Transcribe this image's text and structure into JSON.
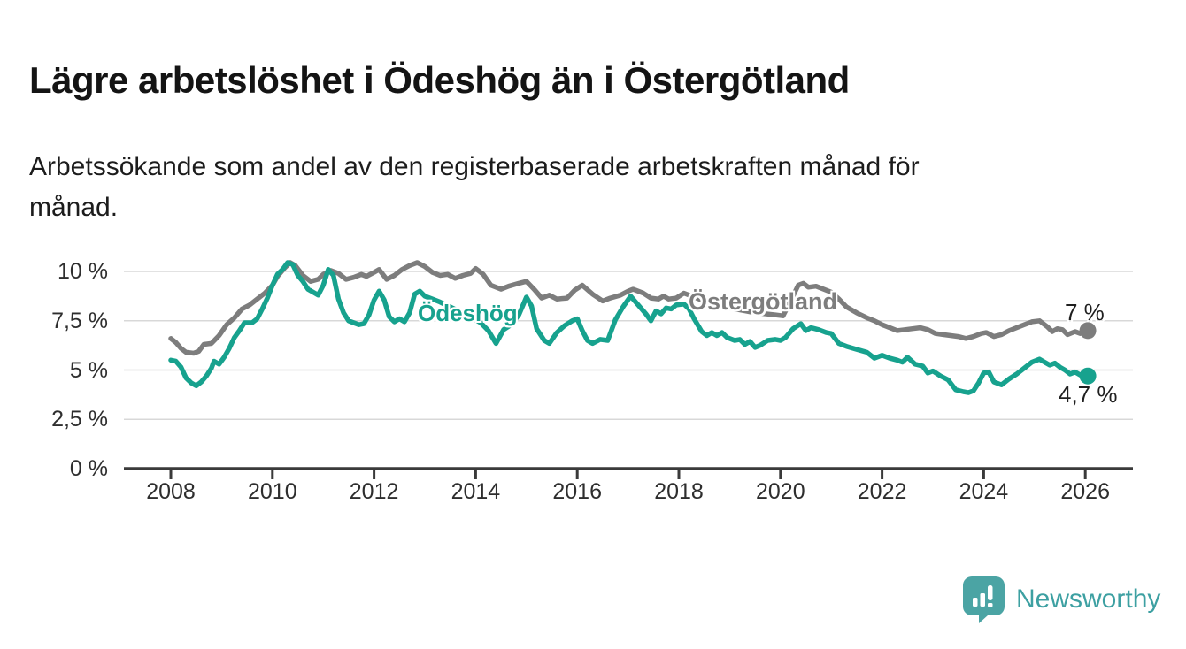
{
  "header": {
    "title": "Lägre arbetslöshet i Ödeshög än i Östergötland",
    "subtitle": "Arbetssökande som andel av den registerbaserade arbetskraften månad för\nmånad."
  },
  "chart_data": {
    "type": "line",
    "title": "Lägre arbetslöshet i Ödeshög än i Östergötland",
    "subtitle": "Arbetssökande som andel av den registerbaserade arbetskraften månad för månad.",
    "grid": "horizontal-only",
    "x_axis": {
      "tick_years": [
        2008,
        2010,
        2012,
        2014,
        2016,
        2018,
        2020,
        2022,
        2024,
        2026
      ],
      "range": [
        2007.1,
        2026.9
      ]
    },
    "y_axis": {
      "ticks": [
        {
          "value": 0,
          "label": "0 %"
        },
        {
          "value": 2.5,
          "label": "2,5 %"
        },
        {
          "value": 5,
          "label": "5 %"
        },
        {
          "value": 7.5,
          "label": "7,5 %"
        },
        {
          "value": 10,
          "label": "10 %"
        }
      ],
      "range": [
        0,
        11.2
      ]
    },
    "series": [
      {
        "name": "Östergötland",
        "color": "#7d7d7d",
        "end_label": "7 %",
        "end_value": 7.0,
        "points": [
          [
            2008.0,
            6.6
          ],
          [
            2008.1,
            6.4
          ],
          [
            2008.2,
            6.1
          ],
          [
            2008.3,
            5.9
          ],
          [
            2008.45,
            5.85
          ],
          [
            2008.55,
            5.95
          ],
          [
            2008.65,
            6.3
          ],
          [
            2008.8,
            6.35
          ],
          [
            2008.95,
            6.75
          ],
          [
            2009.1,
            7.3
          ],
          [
            2009.25,
            7.65
          ],
          [
            2009.4,
            8.1
          ],
          [
            2009.55,
            8.3
          ],
          [
            2009.7,
            8.6
          ],
          [
            2009.85,
            8.9
          ],
          [
            2010.0,
            9.3
          ],
          [
            2010.1,
            9.75
          ],
          [
            2010.25,
            10.2
          ],
          [
            2010.35,
            10.45
          ],
          [
            2010.45,
            10.3
          ],
          [
            2010.6,
            9.8
          ],
          [
            2010.75,
            9.5
          ],
          [
            2010.9,
            9.6
          ],
          [
            2011.0,
            9.85
          ],
          [
            2011.15,
            10.05
          ],
          [
            2011.3,
            9.9
          ],
          [
            2011.45,
            9.6
          ],
          [
            2011.6,
            9.7
          ],
          [
            2011.75,
            9.85
          ],
          [
            2011.85,
            9.75
          ],
          [
            2012.0,
            9.95
          ],
          [
            2012.1,
            10.1
          ],
          [
            2012.25,
            9.6
          ],
          [
            2012.4,
            9.8
          ],
          [
            2012.55,
            10.1
          ],
          [
            2012.7,
            10.3
          ],
          [
            2012.85,
            10.45
          ],
          [
            2013.0,
            10.25
          ],
          [
            2013.15,
            9.95
          ],
          [
            2013.3,
            9.8
          ],
          [
            2013.45,
            9.85
          ],
          [
            2013.6,
            9.65
          ],
          [
            2013.75,
            9.8
          ],
          [
            2013.9,
            9.9
          ],
          [
            2014.0,
            10.15
          ],
          [
            2014.15,
            9.85
          ],
          [
            2014.3,
            9.3
          ],
          [
            2014.5,
            9.1
          ],
          [
            2014.65,
            9.25
          ],
          [
            2014.85,
            9.4
          ],
          [
            2015.0,
            9.5
          ],
          [
            2015.15,
            9.1
          ],
          [
            2015.3,
            8.65
          ],
          [
            2015.45,
            8.8
          ],
          [
            2015.6,
            8.6
          ],
          [
            2015.8,
            8.65
          ],
          [
            2015.95,
            9.05
          ],
          [
            2016.1,
            9.3
          ],
          [
            2016.3,
            8.85
          ],
          [
            2016.5,
            8.5
          ],
          [
            2016.65,
            8.65
          ],
          [
            2016.85,
            8.8
          ],
          [
            2017.0,
            9.0
          ],
          [
            2017.1,
            9.1
          ],
          [
            2017.3,
            8.9
          ],
          [
            2017.45,
            8.65
          ],
          [
            2017.6,
            8.6
          ],
          [
            2017.7,
            8.75
          ],
          [
            2017.8,
            8.6
          ],
          [
            2017.95,
            8.65
          ],
          [
            2018.1,
            8.9
          ],
          [
            2018.3,
            8.7
          ],
          [
            2018.5,
            8.5
          ],
          [
            2018.7,
            8.3
          ],
          [
            2018.9,
            8.2
          ],
          [
            2019.1,
            8.1
          ],
          [
            2019.3,
            8.0
          ],
          [
            2019.5,
            7.9
          ],
          [
            2019.7,
            7.85
          ],
          [
            2019.9,
            7.8
          ],
          [
            2020.05,
            7.75
          ],
          [
            2020.2,
            8.5
          ],
          [
            2020.35,
            9.3
          ],
          [
            2020.45,
            9.4
          ],
          [
            2020.55,
            9.2
          ],
          [
            2020.7,
            9.25
          ],
          [
            2020.85,
            9.1
          ],
          [
            2021.0,
            8.95
          ],
          [
            2021.15,
            8.6
          ],
          [
            2021.3,
            8.2
          ],
          [
            2021.5,
            7.9
          ],
          [
            2021.7,
            7.65
          ],
          [
            2021.85,
            7.5
          ],
          [
            2022.0,
            7.3
          ],
          [
            2022.15,
            7.15
          ],
          [
            2022.3,
            7.0
          ],
          [
            2022.45,
            7.05
          ],
          [
            2022.6,
            7.1
          ],
          [
            2022.75,
            7.15
          ],
          [
            2022.9,
            7.05
          ],
          [
            2023.05,
            6.85
          ],
          [
            2023.2,
            6.8
          ],
          [
            2023.35,
            6.75
          ],
          [
            2023.5,
            6.7
          ],
          [
            2023.65,
            6.6
          ],
          [
            2023.8,
            6.7
          ],
          [
            2023.95,
            6.85
          ],
          [
            2024.05,
            6.9
          ],
          [
            2024.2,
            6.7
          ],
          [
            2024.35,
            6.8
          ],
          [
            2024.5,
            7.0
          ],
          [
            2024.65,
            7.15
          ],
          [
            2024.8,
            7.3
          ],
          [
            2024.95,
            7.45
          ],
          [
            2025.1,
            7.5
          ],
          [
            2025.25,
            7.2
          ],
          [
            2025.35,
            6.95
          ],
          [
            2025.45,
            7.1
          ],
          [
            2025.55,
            7.05
          ],
          [
            2025.65,
            6.8
          ],
          [
            2025.8,
            6.95
          ],
          [
            2025.9,
            6.85
          ],
          [
            2026.05,
            7.0
          ]
        ]
      },
      {
        "name": "Ödeshög",
        "color": "#17a28e",
        "end_label": "4,7 %",
        "end_value": 4.7,
        "points": [
          [
            2008.0,
            5.5
          ],
          [
            2008.1,
            5.45
          ],
          [
            2008.2,
            5.15
          ],
          [
            2008.3,
            4.6
          ],
          [
            2008.4,
            4.35
          ],
          [
            2008.5,
            4.2
          ],
          [
            2008.6,
            4.4
          ],
          [
            2008.7,
            4.7
          ],
          [
            2008.8,
            5.1
          ],
          [
            2008.85,
            5.45
          ],
          [
            2008.95,
            5.3
          ],
          [
            2009.05,
            5.65
          ],
          [
            2009.15,
            6.1
          ],
          [
            2009.25,
            6.65
          ],
          [
            2009.35,
            7.0
          ],
          [
            2009.45,
            7.4
          ],
          [
            2009.6,
            7.4
          ],
          [
            2009.7,
            7.6
          ],
          [
            2009.8,
            8.1
          ],
          [
            2009.9,
            8.65
          ],
          [
            2010.0,
            9.3
          ],
          [
            2010.1,
            9.85
          ],
          [
            2010.2,
            10.1
          ],
          [
            2010.3,
            10.45
          ],
          [
            2010.4,
            10.35
          ],
          [
            2010.5,
            9.8
          ],
          [
            2010.6,
            9.5
          ],
          [
            2010.7,
            9.1
          ],
          [
            2010.8,
            8.95
          ],
          [
            2010.9,
            8.8
          ],
          [
            2011.0,
            9.3
          ],
          [
            2011.1,
            10.1
          ],
          [
            2011.2,
            9.8
          ],
          [
            2011.3,
            8.6
          ],
          [
            2011.4,
            7.9
          ],
          [
            2011.5,
            7.5
          ],
          [
            2011.6,
            7.4
          ],
          [
            2011.7,
            7.3
          ],
          [
            2011.8,
            7.35
          ],
          [
            2011.9,
            7.8
          ],
          [
            2012.0,
            8.55
          ],
          [
            2012.1,
            9.0
          ],
          [
            2012.2,
            8.55
          ],
          [
            2012.3,
            7.7
          ],
          [
            2012.4,
            7.45
          ],
          [
            2012.5,
            7.6
          ],
          [
            2012.6,
            7.45
          ],
          [
            2012.7,
            7.9
          ],
          [
            2012.8,
            8.85
          ],
          [
            2012.9,
            9.0
          ],
          [
            2013.0,
            8.75
          ],
          [
            2013.15,
            8.6
          ],
          [
            2013.3,
            8.45
          ],
          [
            2013.5,
            8.2
          ],
          [
            2013.7,
            7.95
          ],
          [
            2013.9,
            7.7
          ],
          [
            2014.1,
            7.4
          ],
          [
            2014.25,
            7.0
          ],
          [
            2014.4,
            6.35
          ],
          [
            2014.55,
            7.05
          ],
          [
            2014.7,
            7.3
          ],
          [
            2014.85,
            7.8
          ],
          [
            2015.0,
            8.7
          ],
          [
            2015.1,
            8.25
          ],
          [
            2015.2,
            7.1
          ],
          [
            2015.35,
            6.5
          ],
          [
            2015.45,
            6.35
          ],
          [
            2015.6,
            6.9
          ],
          [
            2015.75,
            7.25
          ],
          [
            2015.9,
            7.5
          ],
          [
            2016.0,
            7.6
          ],
          [
            2016.1,
            7.0
          ],
          [
            2016.2,
            6.5
          ],
          [
            2016.3,
            6.35
          ],
          [
            2016.45,
            6.55
          ],
          [
            2016.6,
            6.5
          ],
          [
            2016.75,
            7.55
          ],
          [
            2016.9,
            8.2
          ],
          [
            2017.05,
            8.75
          ],
          [
            2017.2,
            8.3
          ],
          [
            2017.35,
            7.85
          ],
          [
            2017.45,
            7.5
          ],
          [
            2017.55,
            8.0
          ],
          [
            2017.65,
            7.85
          ],
          [
            2017.75,
            8.15
          ],
          [
            2017.85,
            8.1
          ],
          [
            2017.95,
            8.3
          ],
          [
            2018.1,
            8.35
          ],
          [
            2018.2,
            8.1
          ],
          [
            2018.3,
            7.6
          ],
          [
            2018.45,
            6.95
          ],
          [
            2018.55,
            6.75
          ],
          [
            2018.65,
            6.9
          ],
          [
            2018.75,
            6.75
          ],
          [
            2018.85,
            6.9
          ],
          [
            2018.95,
            6.65
          ],
          [
            2019.1,
            6.5
          ],
          [
            2019.2,
            6.55
          ],
          [
            2019.3,
            6.3
          ],
          [
            2019.4,
            6.45
          ],
          [
            2019.5,
            6.15
          ],
          [
            2019.6,
            6.25
          ],
          [
            2019.75,
            6.5
          ],
          [
            2019.9,
            6.55
          ],
          [
            2020.0,
            6.5
          ],
          [
            2020.1,
            6.65
          ],
          [
            2020.25,
            7.1
          ],
          [
            2020.4,
            7.35
          ],
          [
            2020.5,
            7.0
          ],
          [
            2020.6,
            7.15
          ],
          [
            2020.75,
            7.05
          ],
          [
            2020.9,
            6.9
          ],
          [
            2021.0,
            6.85
          ],
          [
            2021.15,
            6.35
          ],
          [
            2021.3,
            6.2
          ],
          [
            2021.5,
            6.05
          ],
          [
            2021.7,
            5.9
          ],
          [
            2021.85,
            5.6
          ],
          [
            2022.0,
            5.75
          ],
          [
            2022.15,
            5.6
          ],
          [
            2022.3,
            5.5
          ],
          [
            2022.4,
            5.4
          ],
          [
            2022.5,
            5.65
          ],
          [
            2022.65,
            5.3
          ],
          [
            2022.8,
            5.2
          ],
          [
            2022.9,
            4.85
          ],
          [
            2023.0,
            4.95
          ],
          [
            2023.15,
            4.7
          ],
          [
            2023.3,
            4.5
          ],
          [
            2023.45,
            4.0
          ],
          [
            2023.6,
            3.9
          ],
          [
            2023.7,
            3.85
          ],
          [
            2023.8,
            3.95
          ],
          [
            2023.9,
            4.35
          ],
          [
            2024.0,
            4.85
          ],
          [
            2024.1,
            4.9
          ],
          [
            2024.2,
            4.4
          ],
          [
            2024.35,
            4.25
          ],
          [
            2024.5,
            4.55
          ],
          [
            2024.65,
            4.8
          ],
          [
            2024.8,
            5.1
          ],
          [
            2024.95,
            5.4
          ],
          [
            2025.1,
            5.55
          ],
          [
            2025.2,
            5.4
          ],
          [
            2025.3,
            5.25
          ],
          [
            2025.4,
            5.35
          ],
          [
            2025.5,
            5.15
          ],
          [
            2025.6,
            5.0
          ],
          [
            2025.7,
            4.8
          ],
          [
            2025.8,
            4.9
          ],
          [
            2025.9,
            4.75
          ],
          [
            2026.05,
            4.7
          ]
        ]
      }
    ]
  },
  "branding": {
    "logo_text": "Newsworthy",
    "logo_color": "#4ba4a4",
    "text_color": "#3da0a2"
  }
}
